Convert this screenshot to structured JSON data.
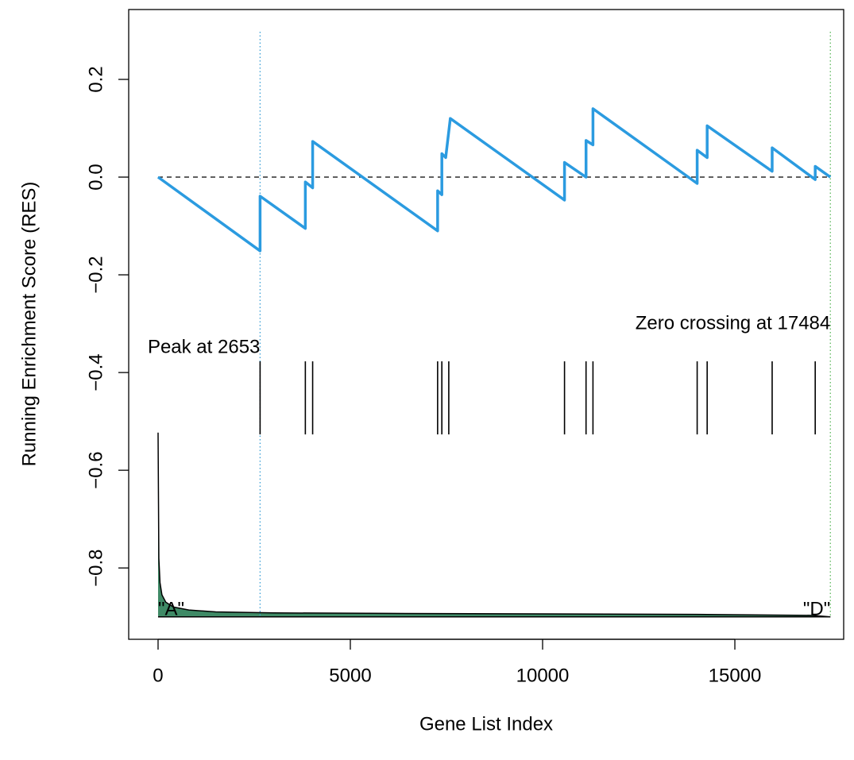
{
  "chart_data": {
    "type": "line",
    "xlabel": "Gene List Index",
    "ylabel": "Running Enrichment Score (RES)",
    "xlim": [
      -764,
      17830
    ],
    "ylim": [
      -0.946,
      0.343
    ],
    "xticks": [
      0,
      5000,
      10000,
      15000
    ],
    "yticks": [
      0.2,
      {
        "value": 0,
        "label": "0.0"
      },
      {
        "value": -0.2,
        "label": "−0.2"
      },
      {
        "value": -0.4,
        "label": "−0.4"
      },
      {
        "value": -0.6,
        "label": "−0.6"
      },
      {
        "value": -0.8,
        "label": "−0.8"
      }
    ],
    "series": [
      {
        "color": "#2b9be0",
        "x": [
          0,
          2653,
          2653,
          3830,
          3830,
          4020,
          4020,
          7270,
          7270,
          7380,
          7380,
          7480,
          7480,
          7600,
          7600,
          10570,
          10570,
          11130,
          11130,
          11310,
          11310,
          14020,
          14020,
          14280,
          14280,
          15970,
          15970,
          17090,
          17090,
          17484
        ],
        "values": [
          0,
          -0.151,
          -0.039,
          -0.105,
          -0.01,
          -0.022,
          0.073,
          -0.11,
          -0.028,
          -0.036,
          0.048,
          0.04,
          0.04,
          0.12,
          0.12,
          -0.047,
          0.03,
          0.0,
          0.075,
          0.066,
          0.14,
          -0.013,
          0.055,
          0.04,
          0.105,
          0.012,
          0.06,
          -0.005,
          0.022,
          0
        ]
      },
      {
        "type": "area",
        "color": "#3f8a66",
        "baseline": -0.9,
        "x": [
          0,
          20,
          50,
          100,
          200,
          400,
          800,
          1500,
          3000,
          6000,
          10000,
          14000,
          17000,
          17484
        ],
        "values": [
          -0.523,
          -0.78,
          -0.83,
          -0.855,
          -0.87,
          -0.88,
          -0.886,
          -0.89,
          -0.892,
          -0.893,
          -0.894,
          -0.895,
          -0.897,
          -0.9
        ]
      }
    ],
    "hits": [
      2653,
      3830,
      4020,
      7270,
      7380,
      7560,
      10570,
      11130,
      11310,
      14020,
      14280,
      15970,
      17090
    ],
    "hline": 0,
    "vlines": [
      {
        "value": 2653,
        "color": "#3a9fd5"
      },
      {
        "value": 17484,
        "color": "#5cb85c"
      }
    ],
    "annotations": [
      "Peak at 2653",
      "Zero crossing at 17484",
      "\"A\"",
      "\"D\""
    ]
  }
}
